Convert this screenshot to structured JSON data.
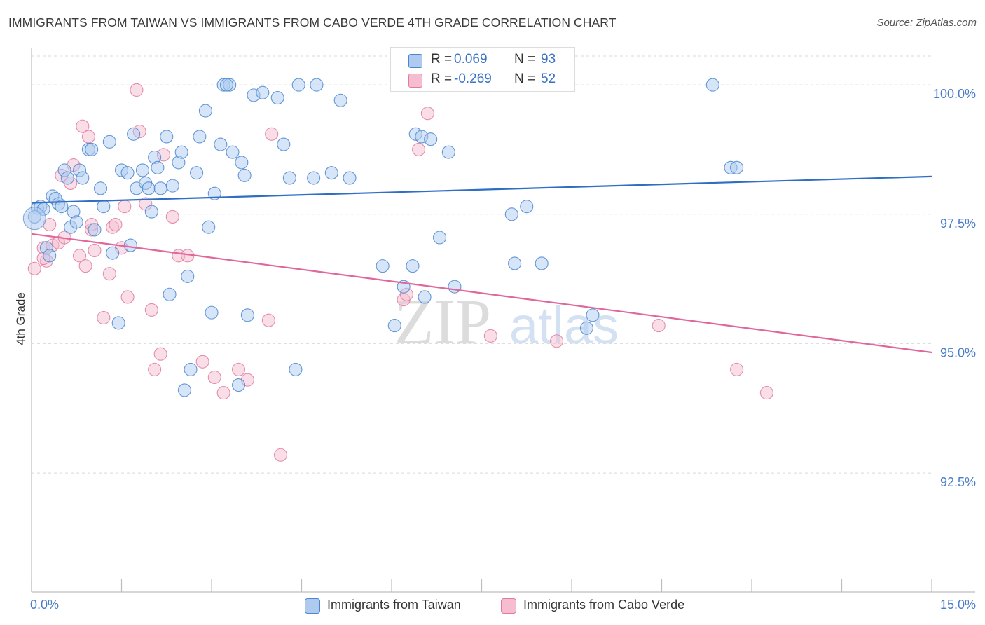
{
  "chart_data": {
    "type": "scatter",
    "title": "IMMIGRANTS FROM TAIWAN VS IMMIGRANTS FROM CABO VERDE 4TH GRADE CORRELATION CHART",
    "source": "Source: ZipAtlas.com",
    "xlabel": "",
    "ylabel": "4th Grade",
    "xlim": [
      0,
      15
    ],
    "ylim": [
      90.2,
      100.8
    ],
    "x_tick_labels": [
      "0.0%",
      "15.0%"
    ],
    "y_ticks": [
      {
        "value": 100.0,
        "label": "100.0%"
      },
      {
        "value": 97.5,
        "label": "97.5%"
      },
      {
        "value": 95.0,
        "label": "95.0%"
      },
      {
        "value": 92.5,
        "label": "92.5%"
      }
    ],
    "grid": true,
    "legend_position": "bottom",
    "watermark": {
      "zip": "ZIP",
      "atlas": "atlas"
    },
    "series": [
      {
        "name": "Immigrants from Taiwan",
        "color": "#4a86d0",
        "fill": "#aecbef",
        "r_label": "R =",
        "r_value": "0.069",
        "n_label": "N =",
        "n_value": "93",
        "trend": {
          "x": [
            0,
            15
          ],
          "y": [
            97.72,
            98.23
          ]
        },
        "points": [
          [
            0.1,
            97.62
          ],
          [
            0.15,
            97.65
          ],
          [
            0.2,
            97.6
          ],
          [
            0.25,
            96.85
          ],
          [
            0.3,
            96.7
          ],
          [
            0.35,
            97.85
          ],
          [
            0.4,
            97.8
          ],
          [
            0.45,
            97.7
          ],
          [
            0.5,
            97.65
          ],
          [
            0.55,
            98.35
          ],
          [
            0.6,
            98.2
          ],
          [
            0.65,
            97.25
          ],
          [
            0.7,
            97.55
          ],
          [
            0.75,
            97.35
          ],
          [
            0.8,
            98.35
          ],
          [
            0.85,
            98.2
          ],
          [
            0.95,
            98.75
          ],
          [
            1.0,
            98.75
          ],
          [
            1.05,
            97.2
          ],
          [
            1.15,
            98.0
          ],
          [
            1.2,
            97.65
          ],
          [
            1.3,
            98.9
          ],
          [
            1.35,
            96.75
          ],
          [
            1.45,
            95.4
          ],
          [
            1.5,
            98.35
          ],
          [
            1.6,
            98.3
          ],
          [
            1.65,
            96.9
          ],
          [
            1.7,
            99.05
          ],
          [
            1.75,
            98.0
          ],
          [
            1.85,
            98.35
          ],
          [
            1.9,
            98.1
          ],
          [
            1.95,
            98.0
          ],
          [
            2.0,
            97.55
          ],
          [
            2.05,
            98.6
          ],
          [
            2.1,
            98.4
          ],
          [
            2.15,
            98.0
          ],
          [
            2.25,
            99.0
          ],
          [
            2.3,
            95.95
          ],
          [
            2.35,
            98.05
          ],
          [
            2.45,
            98.5
          ],
          [
            2.5,
            98.7
          ],
          [
            2.55,
            94.1
          ],
          [
            2.6,
            96.3
          ],
          [
            2.65,
            94.5
          ],
          [
            2.75,
            98.3
          ],
          [
            2.8,
            99.0
          ],
          [
            2.9,
            99.5
          ],
          [
            2.95,
            97.25
          ],
          [
            3.0,
            95.6
          ],
          [
            3.05,
            97.9
          ],
          [
            3.15,
            98.85
          ],
          [
            3.2,
            100.0
          ],
          [
            3.3,
            100.0
          ],
          [
            3.35,
            98.7
          ],
          [
            3.45,
            94.2
          ],
          [
            3.5,
            98.5
          ],
          [
            3.55,
            98.25
          ],
          [
            3.6,
            95.55
          ],
          [
            3.7,
            99.8
          ],
          [
            3.85,
            99.85
          ],
          [
            4.1,
            99.75
          ],
          [
            4.2,
            98.85
          ],
          [
            4.3,
            98.2
          ],
          [
            4.4,
            94.5
          ],
          [
            4.45,
            100.0
          ],
          [
            4.7,
            98.2
          ],
          [
            4.75,
            100.0
          ],
          [
            5.0,
            98.3
          ],
          [
            5.15,
            99.7
          ],
          [
            5.3,
            98.2
          ],
          [
            5.85,
            96.5
          ],
          [
            6.2,
            96.1
          ],
          [
            6.35,
            96.5
          ],
          [
            6.4,
            99.05
          ],
          [
            6.45,
            100.0
          ],
          [
            6.5,
            99.0
          ],
          [
            6.55,
            95.9
          ],
          [
            6.65,
            98.95
          ],
          [
            6.8,
            97.05
          ],
          [
            6.95,
            98.7
          ],
          [
            7.05,
            96.1
          ],
          [
            8.0,
            97.5
          ],
          [
            8.05,
            96.55
          ],
          [
            8.25,
            97.65
          ],
          [
            8.5,
            96.55
          ],
          [
            9.25,
            95.3
          ],
          [
            9.35,
            95.55
          ],
          [
            11.35,
            100.0
          ],
          [
            11.65,
            98.4
          ],
          [
            11.75,
            98.4
          ],
          [
            3.25,
            100.0
          ],
          [
            6.05,
            95.35
          ],
          [
            0.05,
            97.45
          ]
        ]
      },
      {
        "name": "Immigrants from Cabo Verde",
        "color": "#e07aa0",
        "fill": "#f6bdd0",
        "r_label": "R =",
        "r_value": "-0.269",
        "n_label": "N =",
        "n_value": "52",
        "trend": {
          "x": [
            0,
            15
          ],
          "y": [
            97.12,
            94.83
          ]
        },
        "points": [
          [
            0.05,
            96.45
          ],
          [
            0.2,
            96.85
          ],
          [
            0.25,
            96.6
          ],
          [
            0.3,
            97.3
          ],
          [
            0.35,
            96.9
          ],
          [
            0.45,
            96.95
          ],
          [
            0.5,
            98.25
          ],
          [
            0.55,
            97.05
          ],
          [
            0.65,
            98.1
          ],
          [
            0.7,
            98.45
          ],
          [
            0.8,
            96.7
          ],
          [
            0.85,
            99.2
          ],
          [
            0.9,
            96.5
          ],
          [
            0.95,
            99.0
          ],
          [
            1.0,
            97.2
          ],
          [
            1.05,
            96.8
          ],
          [
            1.2,
            95.5
          ],
          [
            1.3,
            96.35
          ],
          [
            1.35,
            97.25
          ],
          [
            1.4,
            97.3
          ],
          [
            1.5,
            96.85
          ],
          [
            1.55,
            97.65
          ],
          [
            1.6,
            95.9
          ],
          [
            1.75,
            99.9
          ],
          [
            1.8,
            99.1
          ],
          [
            1.9,
            97.7
          ],
          [
            2.0,
            95.65
          ],
          [
            2.05,
            94.5
          ],
          [
            2.15,
            94.8
          ],
          [
            2.2,
            98.65
          ],
          [
            2.35,
            97.45
          ],
          [
            2.45,
            96.7
          ],
          [
            2.6,
            96.7
          ],
          [
            2.85,
            94.65
          ],
          [
            3.05,
            94.35
          ],
          [
            3.2,
            94.05
          ],
          [
            3.45,
            94.5
          ],
          [
            3.6,
            94.3
          ],
          [
            3.95,
            95.45
          ],
          [
            4.0,
            99.05
          ],
          [
            4.15,
            92.85
          ],
          [
            6.2,
            95.85
          ],
          [
            6.25,
            95.95
          ],
          [
            6.45,
            98.75
          ],
          [
            6.6,
            99.45
          ],
          [
            7.65,
            95.15
          ],
          [
            8.75,
            95.05
          ],
          [
            10.45,
            95.35
          ],
          [
            11.75,
            94.5
          ],
          [
            12.25,
            94.05
          ],
          [
            0.2,
            96.65
          ],
          [
            1.0,
            97.3
          ]
        ]
      }
    ]
  }
}
